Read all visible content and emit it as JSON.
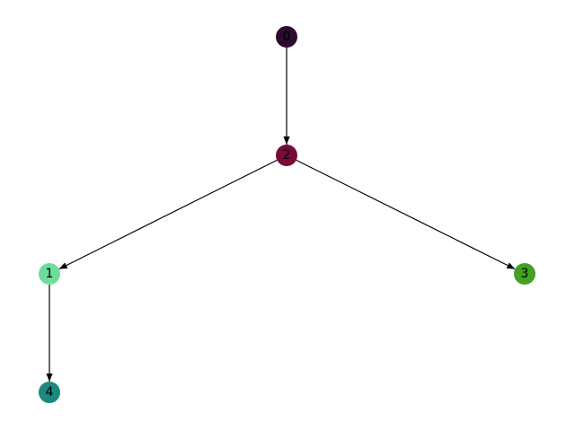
{
  "graph": {
    "type": "directed",
    "nodes": [
      {
        "id": "0",
        "label": "0",
        "color": "#2d0a2e"
      },
      {
        "id": "2",
        "label": "2",
        "color": "#7a0a3a"
      },
      {
        "id": "1",
        "label": "1",
        "color": "#6fdc9c"
      },
      {
        "id": "3",
        "label": "3",
        "color": "#43a024"
      },
      {
        "id": "4",
        "label": "4",
        "color": "#1c8880"
      }
    ],
    "edges": [
      {
        "source": "0",
        "target": "2"
      },
      {
        "source": "2",
        "target": "1"
      },
      {
        "source": "2",
        "target": "3"
      },
      {
        "source": "1",
        "target": "4"
      }
    ],
    "edge_color": "#000000"
  }
}
